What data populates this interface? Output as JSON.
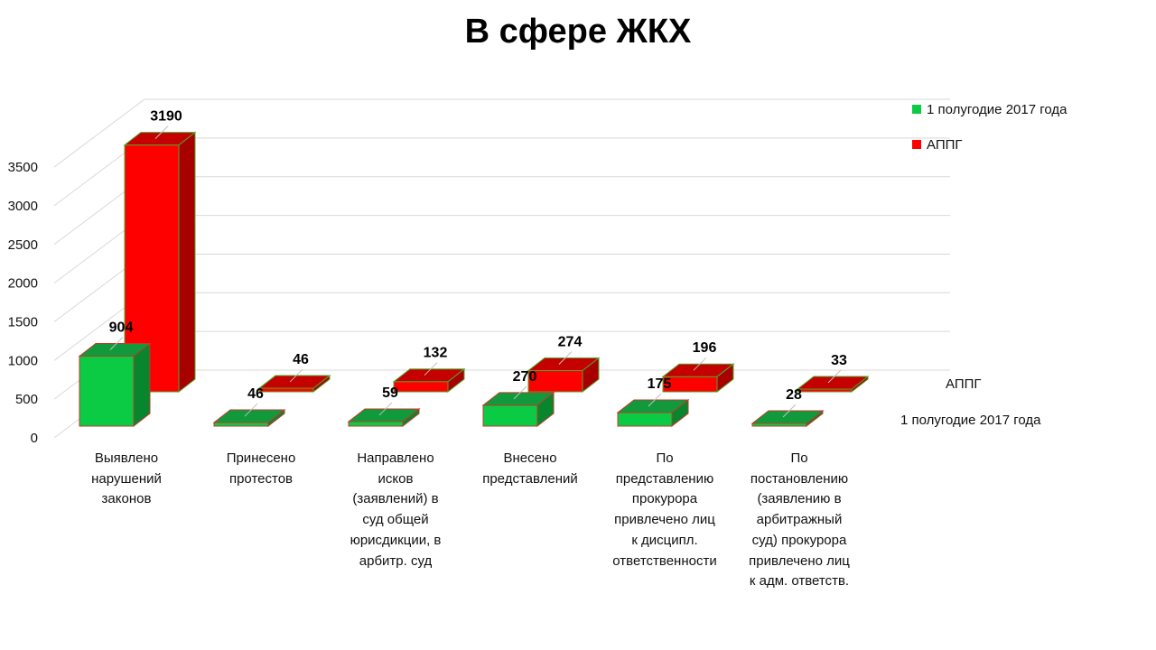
{
  "title": "В сфере ЖКХ",
  "legend": [
    {
      "label": "1 полугодие 2017 года",
      "color": "#0BCB44"
    },
    {
      "label": "АППГ",
      "color": "#FF0000"
    }
  ],
  "depth_axis": [
    "АППГ",
    "1 полугодие 2017 года"
  ],
  "chart_data": {
    "type": "bar",
    "title": "В сфере ЖКХ",
    "xlabel": "",
    "ylabel": "",
    "ylim": [
      0,
      3500
    ],
    "yticks": [
      0,
      500,
      1000,
      1500,
      2000,
      2500,
      3000,
      3500
    ],
    "grid": true,
    "legend_position": "top-right",
    "categories": [
      "Выявлено нарушений законов",
      "Принесено протестов",
      "Направлено исков (заявлений) в суд общей юрисдикции, в арбитр. суд",
      "Внесено представлений",
      "По представлению прокурора привлечено лиц к дисципл. ответственности",
      "По постановлению (заявлению в арбитражный суд)  прокурора привлечено лиц к адм. ответств."
    ],
    "category_lines": [
      [
        "Выявлено",
        "нарушений",
        "законов"
      ],
      [
        "Принесено",
        "протестов"
      ],
      [
        "Направлено",
        "исков",
        "(заявлений) в",
        "суд общей",
        "юрисдикции, в",
        "арбитр. суд"
      ],
      [
        "Внесено",
        "представлений"
      ],
      [
        "По",
        "представлению",
        "прокурора",
        "привлечено лиц",
        "к дисципл.",
        "ответственности"
      ],
      [
        "По",
        "постановлению",
        "(заявлению в",
        "арбитражный",
        "суд)  прокурора",
        "привлечено лиц",
        "к адм. ответств."
      ]
    ],
    "series": [
      {
        "name": "1 полугодие 2017 года",
        "values": [
          904,
          46,
          59,
          270,
          175,
          28
        ],
        "color": "#0BCB44"
      },
      {
        "name": "АППГ",
        "values": [
          3190,
          46,
          132,
          274,
          196,
          33
        ],
        "color": "#FF0000"
      }
    ]
  }
}
